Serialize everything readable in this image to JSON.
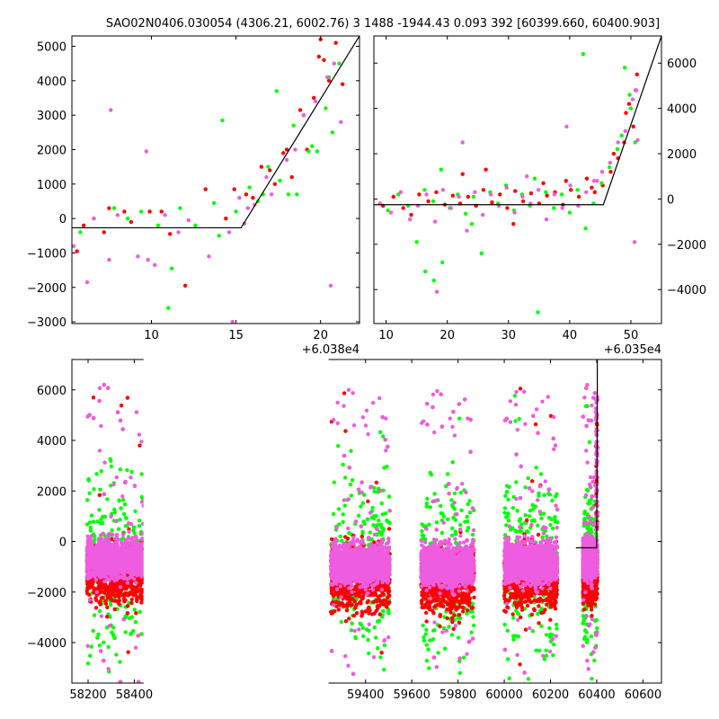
{
  "title": "SAO02N0406.030054 (4306.21, 6002.76)   3 1488 -1944.43 0.093 392 [60399.660, 60400.903]",
  "colors": {
    "red": "#ff0000",
    "green": "#00ff00",
    "magenta": "#ee5ce0",
    "fit": "#000000"
  },
  "chart_data": [
    {
      "type": "scatter",
      "panel": "top-left",
      "x_offset_label": "+6.038e4",
      "xlim": [
        5.3,
        22.3
      ],
      "ylim": [
        -3050,
        5300
      ],
      "xticks": [
        10,
        15,
        20
      ],
      "yticks": [
        -3000,
        -2000,
        -1000,
        0,
        1000,
        2000,
        3000,
        4000,
        5000
      ],
      "ytick_side": "left",
      "fit_line": {
        "x": [
          5.3,
          15.3,
          22.3
        ],
        "y": [
          -270,
          -270,
          5300
        ]
      },
      "series": [
        {
          "color": "red",
          "x": [
            5.6,
            6.0,
            7.2,
            7.5,
            8.4,
            8.8,
            9.9,
            10.6,
            11.1,
            12.0,
            13.2,
            14.4,
            14.9,
            15.6,
            16.5,
            17.3,
            17.8,
            18.3,
            18.8,
            19.2,
            19.6,
            19.9,
            20.2,
            20.5,
            20.9,
            21.3,
            16.0,
            17.0,
            18.0,
            19.0,
            20.0
          ],
          "y": [
            -950,
            -200,
            -400,
            300,
            200,
            -100,
            200,
            200,
            -450,
            -1950,
            850,
            0,
            850,
            700,
            1500,
            1000,
            1900,
            1200,
            3150,
            2000,
            3500,
            4700,
            4600,
            4000,
            5100,
            3900,
            600,
            1400,
            2000,
            3000,
            5200
          ]
        },
        {
          "color": "green",
          "x": [
            5.8,
            6.6,
            7.8,
            8.6,
            9.4,
            10.4,
            11.2,
            11.7,
            12.6,
            13.7,
            14.2,
            15.0,
            15.8,
            16.3,
            16.9,
            17.4,
            18.1,
            18.6,
            19.3,
            19.8,
            20.3,
            20.7,
            21.1,
            14.0,
            16.6,
            17.6,
            18.4,
            19.5,
            20.5,
            11.0
          ],
          "y": [
            -400,
            0,
            300,
            0,
            200,
            -200,
            -1450,
            300,
            -200,
            450,
            2850,
            200,
            900,
            500,
            1500,
            3700,
            700,
            700,
            1950,
            1950,
            3200,
            2500,
            4500,
            -500,
            700,
            1100,
            2700,
            2100,
            4100,
            -2600
          ]
        },
        {
          "color": "magenta",
          "x": [
            5.4,
            6.2,
            7.6,
            8.0,
            9.2,
            9.7,
            10.2,
            10.8,
            11.6,
            12.2,
            13.4,
            14.6,
            15.2,
            15.7,
            16.1,
            16.8,
            17.1,
            18.0,
            18.5,
            19.0,
            19.7,
            20.4,
            20.8,
            21.2,
            7.5,
            9.8,
            14.8,
            20.6,
            6.6,
            15.5
          ],
          "y": [
            -800,
            -1850,
            3150,
            100,
            -1100,
            1950,
            -1350,
            100,
            -400,
            -50,
            -1100,
            -400,
            600,
            300,
            400,
            1200,
            700,
            1700,
            2000,
            3000,
            3400,
            4100,
            4500,
            2800,
            -1200,
            -1200,
            -3000,
            -1950,
            0,
            -150
          ]
        }
      ]
    },
    {
      "type": "scatter",
      "panel": "top-right",
      "x_offset_label": "+6.035e4",
      "xlim": [
        8,
        55
      ],
      "ylim": [
        -5500,
        7200
      ],
      "xticks": [
        10,
        20,
        30,
        40,
        50
      ],
      "yticks": [
        -4000,
        -2000,
        0,
        2000,
        4000,
        6000
      ],
      "ytick_side": "right",
      "fit_line": {
        "x": [
          8,
          45.5,
          55
        ],
        "y": [
          -250,
          -250,
          7200
        ]
      },
      "series": [
        {
          "color": "red",
          "x": [
            9.5,
            11.2,
            12.8,
            14.1,
            15.4,
            16.9,
            18.2,
            19.6,
            20.9,
            22.1,
            23.4,
            24.7,
            25.9,
            27.3,
            28.6,
            29.8,
            31.1,
            32.4,
            33.7,
            35.0,
            36.3,
            37.6,
            38.9,
            40.2,
            41.5,
            42.8,
            44.1,
            45.4,
            46.7,
            47.9,
            48.9,
            49.7,
            50.4,
            51.0,
            22.5,
            26.3,
            30.8,
            35.7,
            39.4,
            43.6,
            47.2,
            49.2,
            50.8
          ],
          "y": [
            -300,
            100,
            -400,
            -700,
            200,
            -100,
            300,
            -250,
            150,
            -200,
            100,
            -300,
            400,
            -150,
            200,
            -400,
            350,
            -100,
            250,
            -200,
            150,
            300,
            -250,
            400,
            100,
            900,
            300,
            600,
            1200,
            1800,
            2500,
            4200,
            3200,
            5500,
            1100,
            1300,
            -1100,
            700,
            800,
            500,
            2000,
            3800,
            4800
          ]
        },
        {
          "color": "green",
          "x": [
            10.3,
            12.0,
            13.6,
            15.0,
            16.3,
            17.7,
            19.0,
            20.4,
            21.7,
            23.0,
            24.3,
            25.6,
            27.0,
            28.3,
            29.6,
            30.9,
            32.2,
            33.5,
            34.8,
            36.1,
            37.4,
            38.7,
            40.0,
            41.3,
            42.6,
            43.9,
            45.2,
            46.5,
            47.8,
            49.0,
            50.0,
            50.7,
            16.4,
            17.8,
            19.2,
            24.0,
            34.3,
            42.2,
            48.5,
            49.8
          ],
          "y": [
            -500,
            200,
            -300,
            -1900,
            400,
            -100,
            1300,
            -400,
            200,
            -650,
            100,
            -2400,
            300,
            -200,
            600,
            -500,
            200,
            -300,
            -5000,
            300,
            -400,
            200,
            -600,
            400,
            -1300,
            -200,
            700,
            1400,
            2200,
            5800,
            4000,
            2500,
            -3200,
            -3600,
            -2800,
            -1100,
            900,
            6400,
            2800,
            4600
          ]
        },
        {
          "color": "magenta",
          "x": [
            9.0,
            10.8,
            12.4,
            13.9,
            15.2,
            16.6,
            18.0,
            19.3,
            20.6,
            21.9,
            23.2,
            24.5,
            25.8,
            27.1,
            28.4,
            29.7,
            31.0,
            32.3,
            33.6,
            34.9,
            36.2,
            37.5,
            38.8,
            40.1,
            41.4,
            42.7,
            44.0,
            45.3,
            46.6,
            47.9,
            49.1,
            50.3,
            50.9,
            18.3,
            22.5,
            33.0,
            39.5,
            44.5,
            50.6,
            51.1
          ],
          "y": [
            -200,
            -600,
            300,
            -900,
            -300,
            200,
            -1000,
            400,
            -400,
            100,
            -1400,
            300,
            -700,
            200,
            -300,
            500,
            -600,
            100,
            -200,
            400,
            -900,
            200,
            -400,
            600,
            -300,
            300,
            800,
            1200,
            1600,
            2500,
            3000,
            4400,
            4800,
            -4100,
            2500,
            1000,
            3200,
            800,
            -1900,
            2600
          ]
        }
      ]
    },
    {
      "type": "scatter",
      "panel": "bottom",
      "xlim": [
        58130,
        60680
      ],
      "ylim": [
        -5600,
        7200
      ],
      "xticks": [
        58200,
        58400,
        59400,
        59600,
        59800,
        60000,
        60200,
        60400,
        60600
      ],
      "yticks": [
        -4000,
        -2000,
        0,
        2000,
        4000,
        6000
      ],
      "ytick_side": "left",
      "axis_break": {
        "left_end": 58440,
        "right_start": 59240
      },
      "fit_line": {
        "x": [
          60310,
          60399.7,
          60399.7,
          60402.4,
          60402.4
        ],
        "y": [
          -250,
          -250,
          -250,
          5800,
          7200
        ]
      },
      "clusters": [
        {
          "xmin": 58195,
          "xmax": 58440,
          "center": -700,
          "spread": 650
        },
        {
          "xmin": 59250,
          "xmax": 59505,
          "center": -900,
          "spread": 700
        },
        {
          "xmin": 59640,
          "xmax": 59870,
          "center": -950,
          "spread": 700
        },
        {
          "xmin": 60000,
          "xmax": 60230,
          "center": -850,
          "spread": 700
        },
        {
          "xmin": 60340,
          "xmax": 60403,
          "center": -700,
          "spread": 600
        }
      ]
    }
  ]
}
